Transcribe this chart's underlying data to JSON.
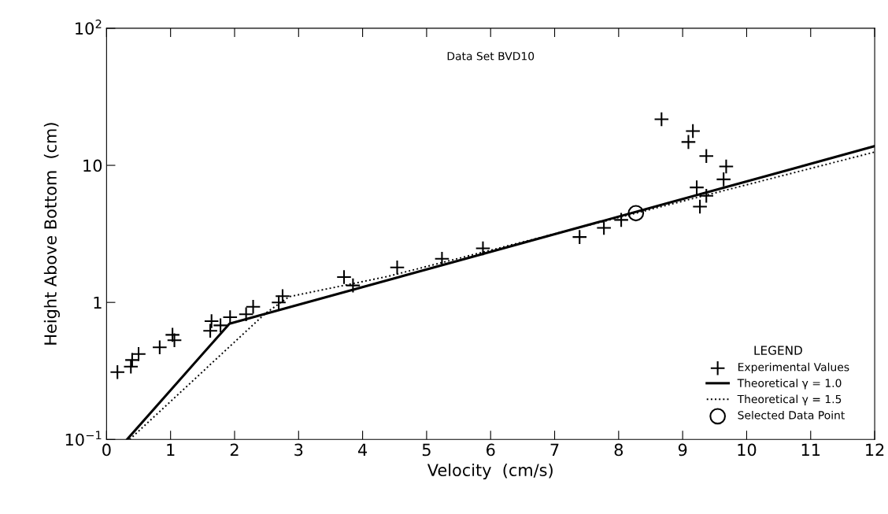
{
  "chart_data": {
    "type": "scatter",
    "title": "Data Set BVD10",
    "xlabel": "Velocity  (cm/s)",
    "ylabel": "Height Above Bottom  (cm)",
    "log": "y",
    "xlim": [
      0,
      12
    ],
    "xticks": [
      0,
      1,
      2,
      3,
      4,
      5,
      6,
      7,
      8,
      9,
      10,
      11,
      12
    ],
    "ylim": [
      0.1,
      100
    ],
    "yticks": [
      {
        "value": 0.1,
        "label": "10$^{−1}$"
      },
      1,
      10,
      {
        "value": 100,
        "label": "10$^{2}$"
      }
    ],
    "grid": false,
    "legend": "bottom right",
    "legend_title": "LEGEND",
    "series": [
      {
        "name": "Experimental Values",
        "marker": "cross",
        "color": "#000000",
        "x": [
          0.17,
          0.38,
          0.4,
          0.5,
          0.83,
          1.03,
          1.06,
          1.64,
          1.62,
          1.78,
          1.93,
          2.18,
          2.29,
          2.69,
          2.75,
          3.71,
          3.85,
          4.54,
          5.24,
          5.88,
          7.39,
          7.77,
          8.04,
          8.67,
          9.16,
          9.09,
          9.37,
          9.68,
          9.64,
          9.22,
          9.37,
          9.27
        ],
        "values": [
          0.31,
          0.34,
          0.38,
          0.42,
          0.47,
          0.58,
          0.53,
          0.73,
          0.62,
          0.68,
          0.78,
          0.82,
          0.93,
          1.0,
          1.11,
          1.53,
          1.33,
          1.8,
          2.08,
          2.48,
          3.0,
          3.5,
          4.0,
          21.7,
          17.8,
          14.8,
          11.7,
          9.8,
          7.9,
          6.9,
          6.0,
          5.0
        ]
      },
      {
        "name": "Theoretical γ = 1.0",
        "type": "line",
        "line_style": "solid",
        "color": "#000000",
        "x": [
          0.32,
          1.92,
          12
        ],
        "values": [
          0.1,
          0.7,
          13.8
        ]
      },
      {
        "name": "Theoretical γ = 1.5",
        "type": "line",
        "line_style": "dotted",
        "color": "#000000",
        "x": [
          0.36,
          2.48,
          2.85,
          4.4,
          8.27,
          12
        ],
        "values": [
          0.1,
          0.83,
          1.1,
          1.55,
          4.48,
          12.5
        ]
      },
      {
        "name": "Selected Data Point",
        "marker": "circle",
        "color": "#000000",
        "x": [
          8.27
        ],
        "values": [
          4.48
        ]
      }
    ]
  }
}
